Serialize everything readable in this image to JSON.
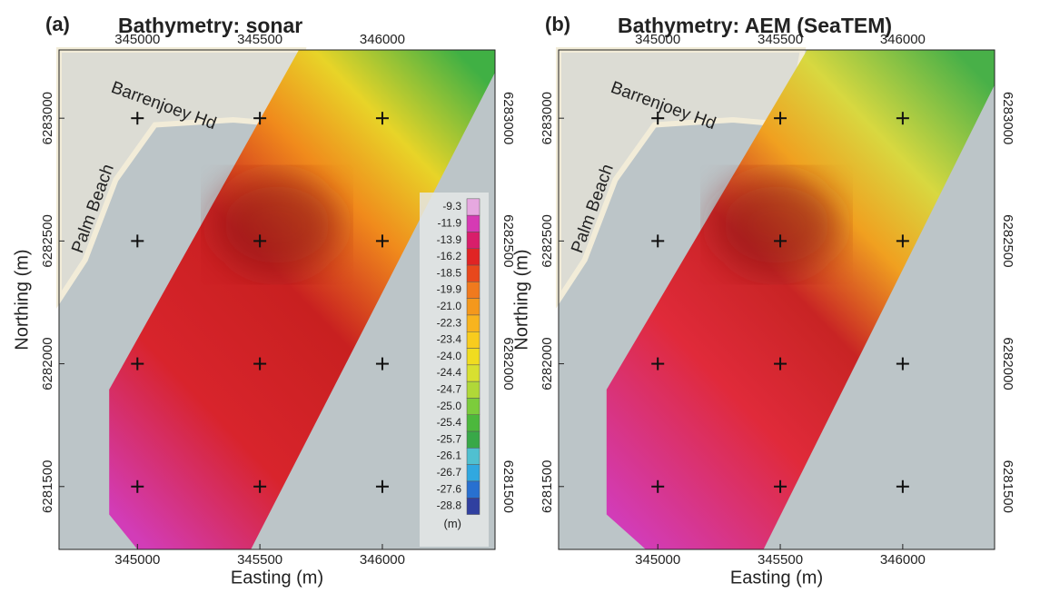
{
  "panels": [
    {
      "label": "(a)",
      "title": "Bathymetry: sonar",
      "x_label": "Easting (m)",
      "y_label": "Northing (m)",
      "xlim": [
        344680,
        346460
      ],
      "ylim": [
        6281244,
        6283278
      ],
      "xticks": [
        345000,
        345500,
        346000
      ],
      "yticks": [
        6281500,
        6282000,
        6282500,
        6283000
      ],
      "annotations": [
        "Barrenjoey Hd",
        "Palm Beach"
      ]
    },
    {
      "label": "(b)",
      "title": "Bathymetry: AEM (SeaTEM)",
      "x_label": "Easting (m)",
      "y_label": "Northing (m)",
      "xlim": [
        344595,
        346375
      ],
      "ylim": [
        6281244,
        6283278
      ],
      "xticks": [
        345000,
        345500,
        346000
      ],
      "yticks": [
        6281500,
        6282000,
        6282500,
        6283000
      ],
      "annotations": [
        "Barrenjoey Hd",
        "Palm Beach"
      ]
    }
  ],
  "colorbar": {
    "unit": "(m)",
    "labels": [
      "-9.3",
      "-11.9",
      "-13.9",
      "-16.2",
      "-18.5",
      "-19.9",
      "-21.0",
      "-22.3",
      "-23.4",
      "-24.0",
      "-24.4",
      "-24.7",
      "-25.0",
      "-25.4",
      "-25.7",
      "-26.1",
      "-26.7",
      "-27.6",
      "-28.8"
    ],
    "colors": [
      "#e6a8e0",
      "#d63ab4",
      "#d81e6a",
      "#e02424",
      "#e8481c",
      "#f07a1e",
      "#f4981c",
      "#f8b41e",
      "#f8cc1e",
      "#f0dc20",
      "#d8e030",
      "#b0d838",
      "#7ccc3c",
      "#4cb83c",
      "#38a848",
      "#50c0d0",
      "#30a8e0",
      "#2870d0",
      "#3040a0"
    ]
  }
}
